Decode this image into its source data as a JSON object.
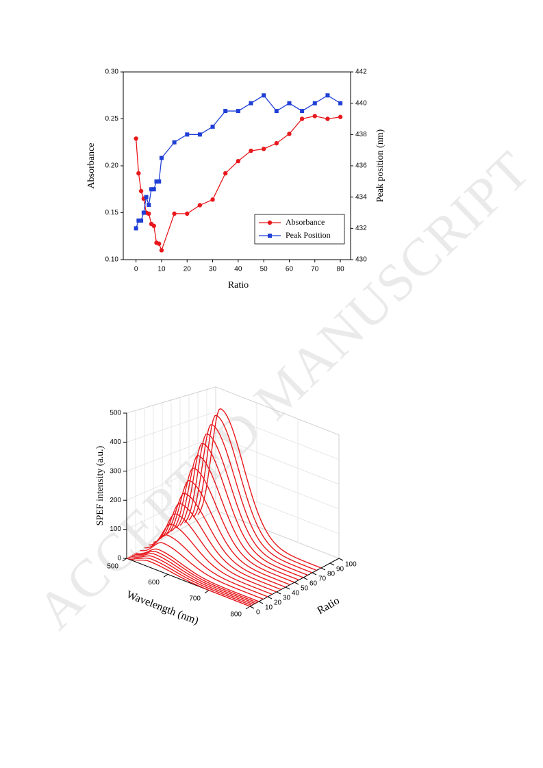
{
  "watermark": "ACCEPTED MANUSCRIPT",
  "chart_data": [
    {
      "type": "line",
      "x_label": "Ratio",
      "y_label": "Absorbance",
      "y2_label": "Peak position (nm)",
      "x": [
        0,
        1,
        2,
        3,
        4,
        5,
        6,
        7,
        8,
        9,
        10,
        15,
        20,
        25,
        30,
        35,
        40,
        45,
        50,
        55,
        60,
        65,
        70,
        75,
        80
      ],
      "series": [
        {
          "name": "Absorbance",
          "color": "#e8181c",
          "marker": "circle",
          "values": [
            0.229,
            0.192,
            0.173,
            0.165,
            0.15,
            0.149,
            0.138,
            0.136,
            0.118,
            0.117,
            0.11,
            0.149,
            0.149,
            0.158,
            0.164,
            0.192,
            0.205,
            0.216,
            0.218,
            0.224,
            0.234,
            0.25,
            0.253,
            0.25,
            0.252
          ]
        },
        {
          "name": "Peak Position",
          "color": "#1f3fd6",
          "marker": "square",
          "axis": "y2",
          "values": [
            432,
            432.5,
            432.5,
            433,
            434,
            433.5,
            434.5,
            434.5,
            435,
            435,
            436.5,
            437.5,
            438,
            438,
            438.5,
            439.5,
            439.5,
            440,
            440.5,
            439.5,
            440,
            439.5,
            440,
            440.5,
            440
          ]
        }
      ],
      "xlim": [
        -5,
        84
      ],
      "xticks": [
        0,
        10,
        20,
        30,
        40,
        50,
        60,
        70,
        80
      ],
      "ylim": [
        0.1,
        0.3
      ],
      "yticks": [
        {
          "value": 0.1,
          "label": "0.10"
        },
        0.15,
        {
          "value": 0.2,
          "label": "0.20"
        },
        0.25,
        {
          "value": 0.3,
          "label": "0.30"
        }
      ],
      "y2lim": [
        430,
        442
      ],
      "y2ticks": [
        430,
        432,
        434,
        436,
        438,
        440,
        442
      ],
      "legend": "lower right"
    },
    {
      "type": "waterfall3d",
      "x_label": "Wavelength (nm)",
      "y_label": "Ratio",
      "z_label": "SPEF intensity (a.u.)",
      "color": "#e8181c",
      "ratios": [
        0,
        2,
        4,
        6,
        8,
        10,
        15,
        20,
        25,
        30,
        35,
        40,
        45,
        50,
        55,
        60,
        65,
        70,
        75,
        80
      ],
      "peak_values": [
        20,
        25,
        30,
        35,
        40,
        45,
        60,
        80,
        110,
        140,
        170,
        200,
        240,
        280,
        320,
        360,
        390,
        420,
        450,
        470
      ],
      "xlim": [
        500,
        800
      ],
      "xticks": [
        500,
        600,
        700,
        800
      ],
      "ylim": [
        0,
        100
      ],
      "yticks": [
        0,
        10,
        20,
        30,
        40,
        50,
        60,
        70,
        80,
        90,
        100
      ],
      "zlim": [
        0,
        500
      ],
      "zticks": [
        0,
        100,
        200,
        300,
        400,
        500
      ],
      "grid": true
    }
  ]
}
